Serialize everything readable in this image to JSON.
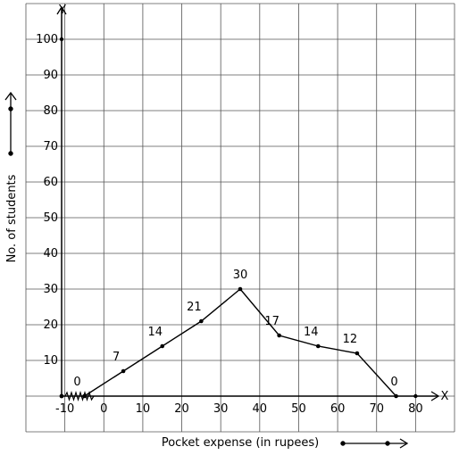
{
  "chart_data": {
    "type": "line",
    "xlabel": "Pocket expense (in rupees)",
    "ylabel": "No. of students",
    "x_axis_letter": "X",
    "y_axis_letter": "Y",
    "x_ticks": [
      {
        "value": -10,
        "label": "-10"
      },
      {
        "value": 0,
        "label": "0"
      },
      {
        "value": 10,
        "label": "10"
      },
      {
        "value": 20,
        "label": "20"
      },
      {
        "value": 30,
        "label": "30"
      },
      {
        "value": 40,
        "label": "40"
      },
      {
        "value": 50,
        "label": "50"
      },
      {
        "value": 60,
        "label": "60"
      },
      {
        "value": 70,
        "label": "70"
      },
      {
        "value": 80,
        "label": "80"
      }
    ],
    "y_ticks": [
      {
        "value": 10,
        "label": "10"
      },
      {
        "value": 20,
        "label": "20"
      },
      {
        "value": 30,
        "label": "30"
      },
      {
        "value": 40,
        "label": "40"
      },
      {
        "value": 50,
        "label": "50"
      },
      {
        "value": 60,
        "label": "60"
      },
      {
        "value": 70,
        "label": "70"
      },
      {
        "value": 80,
        "label": "80"
      },
      {
        "value": 90,
        "label": "90"
      },
      {
        "value": 100,
        "label": "100"
      }
    ],
    "xlim": [
      -20,
      90
    ],
    "ylim": [
      -10,
      110
    ],
    "grid": true,
    "axis_break": "zigzag on x-axis near origin",
    "series": [
      {
        "x": [
          -5,
          5,
          15,
          25,
          35,
          45,
          55,
          65,
          75
        ],
        "y": [
          0,
          7,
          14,
          21,
          30,
          17,
          14,
          12,
          0
        ],
        "labels": [
          "0",
          "7",
          "14",
          "21",
          "30",
          "17",
          "14",
          "12",
          "0"
        ]
      }
    ],
    "colors": {
      "line": "#000000",
      "grid": "#555555",
      "axis": "#000000"
    }
  }
}
